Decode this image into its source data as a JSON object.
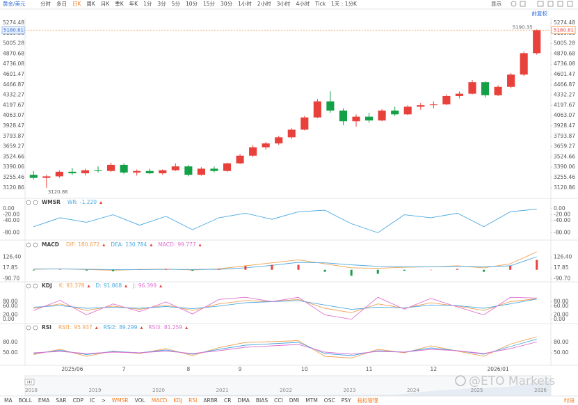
{
  "toolbar": {
    "symbol": "黄金/美元",
    "periods": [
      {
        "label": "分时"
      },
      {
        "label": "多日"
      },
      {
        "label": "日K",
        "active": true
      },
      {
        "label": "周K"
      },
      {
        "label": "月K"
      },
      {
        "label": "季K"
      },
      {
        "label": "年K"
      },
      {
        "label": "1分"
      },
      {
        "label": "3分"
      },
      {
        "label": "5分"
      },
      {
        "label": "10分"
      },
      {
        "label": "15分"
      },
      {
        "label": "30分"
      },
      {
        "label": "1小时"
      },
      {
        "label": "2小时"
      },
      {
        "label": "3小时"
      },
      {
        "label": "4小时"
      },
      {
        "label": "Tick"
      },
      {
        "label": "1天 : 1分K"
      }
    ],
    "display": "显示",
    "adjust": "前复权"
  },
  "chart_data": {
    "type": "candlestick",
    "categories": [
      null,
      null,
      null,
      "2025/06",
      null,
      null,
      null,
      "7",
      null,
      null,
      null,
      null,
      "8",
      null,
      null,
      null,
      "9",
      null,
      null,
      null,
      null,
      "10",
      null,
      null,
      null,
      null,
      "11",
      null,
      null,
      null,
      null,
      "12",
      null,
      null,
      null,
      null,
      "2026/01",
      null,
      null,
      null
    ],
    "candles": [
      [
        3290,
        3340,
        3230,
        3250
      ],
      [
        3250,
        3290,
        3120.86,
        3270
      ],
      [
        3270,
        3350,
        3250,
        3330
      ],
      [
        3330,
        3380,
        3290,
        3310
      ],
      [
        3310,
        3370,
        3280,
        3350
      ],
      [
        3350,
        3400,
        3320,
        3340
      ],
      [
        3340,
        3450,
        3330,
        3420
      ],
      [
        3420,
        3440,
        3300,
        3320
      ],
      [
        3320,
        3360,
        3280,
        3340
      ],
      [
        3340,
        3370,
        3300,
        3310
      ],
      [
        3310,
        3360,
        3290,
        3350
      ],
      [
        3350,
        3440,
        3340,
        3400
      ],
      [
        3400,
        3420,
        3270,
        3290
      ],
      [
        3290,
        3390,
        3280,
        3370
      ],
      [
        3370,
        3400,
        3320,
        3340
      ],
      [
        3340,
        3450,
        3330,
        3440
      ],
      [
        3440,
        3560,
        3430,
        3540
      ],
      [
        3540,
        3680,
        3520,
        3650
      ],
      [
        3650,
        3720,
        3620,
        3700
      ],
      [
        3700,
        3800,
        3680,
        3780
      ],
      [
        3780,
        3900,
        3760,
        3880
      ],
      [
        3880,
        4060,
        3870,
        4040
      ],
      [
        4040,
        4280,
        4030,
        4250
      ],
      [
        4250,
        4381,
        4100,
        4130
      ],
      [
        4130,
        4160,
        3940,
        3990
      ],
      [
        3990,
        4080,
        3920,
        4050
      ],
      [
        4050,
        4100,
        3970,
        4000
      ],
      [
        4000,
        4150,
        3990,
        4130
      ],
      [
        4130,
        4180,
        4060,
        4080
      ],
      [
        4080,
        4200,
        4070,
        4180
      ],
      [
        4180,
        4230,
        4140,
        4200
      ],
      [
        4200,
        4250,
        4160,
        4210
      ],
      [
        4210,
        4340,
        4200,
        4320
      ],
      [
        4320,
        4380,
        4290,
        4350
      ],
      [
        4350,
        4530,
        4340,
        4500
      ],
      [
        4500,
        4510,
        4300,
        4330
      ],
      [
        4330,
        4460,
        4320,
        4440
      ],
      [
        4440,
        4620,
        4420,
        4600
      ],
      [
        4600,
        4900,
        4580,
        4880
      ],
      [
        4880,
        5190.35,
        4860,
        5180.81
      ]
    ],
    "up_color": "#e8413b",
    "down_color": "#14a047",
    "last_price_color": "#f5a05a",
    "ylim": [
      3010,
      5320
    ],
    "yticks": [
      5274.48,
      5139.88,
      5005.28,
      4870.68,
      4736.08,
      4601.47,
      4466.87,
      4332.27,
      4197.67,
      4063.07,
      3928.47,
      3793.87,
      3659.27,
      3524.66,
      3390.06,
      3255.46,
      3120.86
    ],
    "panes": [
      {
        "title": "WMSR",
        "ylim": [
          -100,
          0
        ],
        "yticks": [
          {
            "value": 0,
            "label": "0.00"
          },
          {
            "value": -20,
            "label": "-20.00"
          },
          {
            "value": -40,
            "label": "-40.00"
          },
          {
            "value": -80,
            "label": "-80.00"
          }
        ],
        "series": [
          {
            "name": "WR:",
            "current": "-1.220",
            "color": "#4aa8e0",
            "style": "line",
            "values": [
              -60,
              -30,
              -45,
              -20,
              -55,
              -25,
              -70,
              -30,
              -15,
              -35,
              -10,
              -5,
              -50,
              -80,
              -20,
              -30,
              -15,
              -60,
              -10,
              -1.22
            ]
          }
        ]
      },
      {
        "title": "MACD",
        "ylim": [
          -100,
          180
        ],
        "yticks": [
          {
            "value": 126.4,
            "label": "126.40"
          },
          17.85,
          {
            "value": -90.7,
            "label": "-90.70"
          }
        ],
        "series": [
          {
            "name": "DIF:",
            "current": "180.672",
            "color": "#f0a050",
            "style": "line",
            "values": [
              5,
              10,
              2,
              -5,
              3,
              8,
              -2,
              10,
              40,
              70,
              100,
              60,
              20,
              15,
              25,
              30,
              40,
              20,
              60,
              180.672
            ]
          },
          {
            "name": "DEA:",
            "current": "130.784",
            "color": "#4aa8e0",
            "style": "line",
            "values": [
              8,
              9,
              6,
              2,
              1,
              4,
              3,
              5,
              20,
              45,
              75,
              70,
              50,
              35,
              30,
              30,
              35,
              30,
              40,
              130.784
            ]
          },
          {
            "name": "MACD:",
            "current": "99.777",
            "color": "#e070d0",
            "style": "bar",
            "values": [
              -6,
              2,
              -8,
              -14,
              4,
              8,
              -10,
              10,
              40,
              50,
              50,
              -20,
              -60,
              -40,
              -10,
              0,
              10,
              -20,
              40,
              99.777
            ]
          }
        ]
      },
      {
        "title": "KDJ",
        "ylim": [
          -10,
          110
        ],
        "yticks": [
          {
            "value": 80,
            "label": "80.00"
          },
          {
            "value": 60,
            "label": "60.00"
          },
          {
            "value": 20,
            "label": "20.00"
          },
          {
            "value": 0,
            "label": "0.00"
          }
        ],
        "series": [
          {
            "name": "K:",
            "current": "93.378",
            "color": "#f0a050",
            "style": "line",
            "values": [
              50,
              70,
              40,
              60,
              45,
              65,
              40,
              70,
              85,
              80,
              90,
              50,
              30,
              70,
              50,
              75,
              60,
              40,
              80,
              93.378
            ]
          },
          {
            "name": "D:",
            "current": "91.868",
            "color": "#4aa8e0",
            "style": "line",
            "values": [
              55,
              62,
              50,
              55,
              50,
              58,
              48,
              60,
              75,
              80,
              85,
              65,
              45,
              55,
              52,
              65,
              62,
              50,
              70,
              91.868
            ]
          },
          {
            "name": "J:",
            "current": "96.399",
            "color": "#e070d0",
            "style": "line",
            "values": [
              40,
              86,
              20,
              70,
              35,
              79,
              24,
              90,
              100,
              80,
              100,
              20,
              0,
              100,
              46,
              95,
              56,
              20,
              100,
              96.399
            ]
          }
        ]
      },
      {
        "title": "RSI",
        "ylim": [
          20,
          100
        ],
        "yticks": [
          {
            "value": 80,
            "label": "80.00"
          },
          {
            "value": 50,
            "label": "50.00"
          }
        ],
        "series": [
          {
            "name": "RSI1:",
            "current": "95.937",
            "color": "#f0a050",
            "style": "line",
            "values": [
              45,
              60,
              40,
              55,
              48,
              62,
              42,
              65,
              80,
              82,
              85,
              40,
              35,
              60,
              50,
              70,
              55,
              40,
              75,
              95.937
            ]
          },
          {
            "name": "RSI2:",
            "current": "89.299",
            "color": "#4aa8e0",
            "style": "line",
            "values": [
              48,
              57,
              45,
              54,
              50,
              58,
              46,
              60,
              72,
              76,
              80,
              48,
              42,
              56,
              52,
              64,
              56,
              46,
              68,
              89.299
            ]
          },
          {
            "name": "RSI3:",
            "current": "81.259",
            "color": "#e070d0",
            "style": "line",
            "values": [
              50,
              54,
              48,
              52,
              50,
              55,
              48,
              56,
              66,
              70,
              74,
              52,
              46,
              54,
              52,
              60,
              56,
              48,
              62,
              81.259
            ]
          }
        ]
      }
    ]
  },
  "navigator": {
    "years": [
      2018,
      2019,
      2020,
      2021,
      2022,
      2023,
      2024,
      2025,
      2026
    ]
  },
  "indicator_tabs": [
    {
      "label": "MA"
    },
    {
      "label": "BOLL"
    },
    {
      "label": "EMA"
    },
    {
      "label": "SAR"
    },
    {
      "label": "CDP"
    },
    {
      "label": "IC"
    },
    {
      "label": ">"
    },
    {
      "label": "WMSR",
      "active": true
    },
    {
      "label": "VOL"
    },
    {
      "label": "MACD",
      "active": true
    },
    {
      "label": "KDJ",
      "active": true
    },
    {
      "label": "RSI",
      "active": true
    },
    {
      "label": "ARBR"
    },
    {
      "label": "CR"
    },
    {
      "label": "DMA"
    },
    {
      "label": "BIAS"
    },
    {
      "label": "CCI"
    },
    {
      "label": "DMI"
    },
    {
      "label": "MTM"
    },
    {
      "label": "OSC"
    },
    {
      "label": "PSY"
    },
    {
      "label": "指标管理",
      "active": true
    }
  ],
  "period_button": "时段",
  "watermark": "@ETO Markets"
}
